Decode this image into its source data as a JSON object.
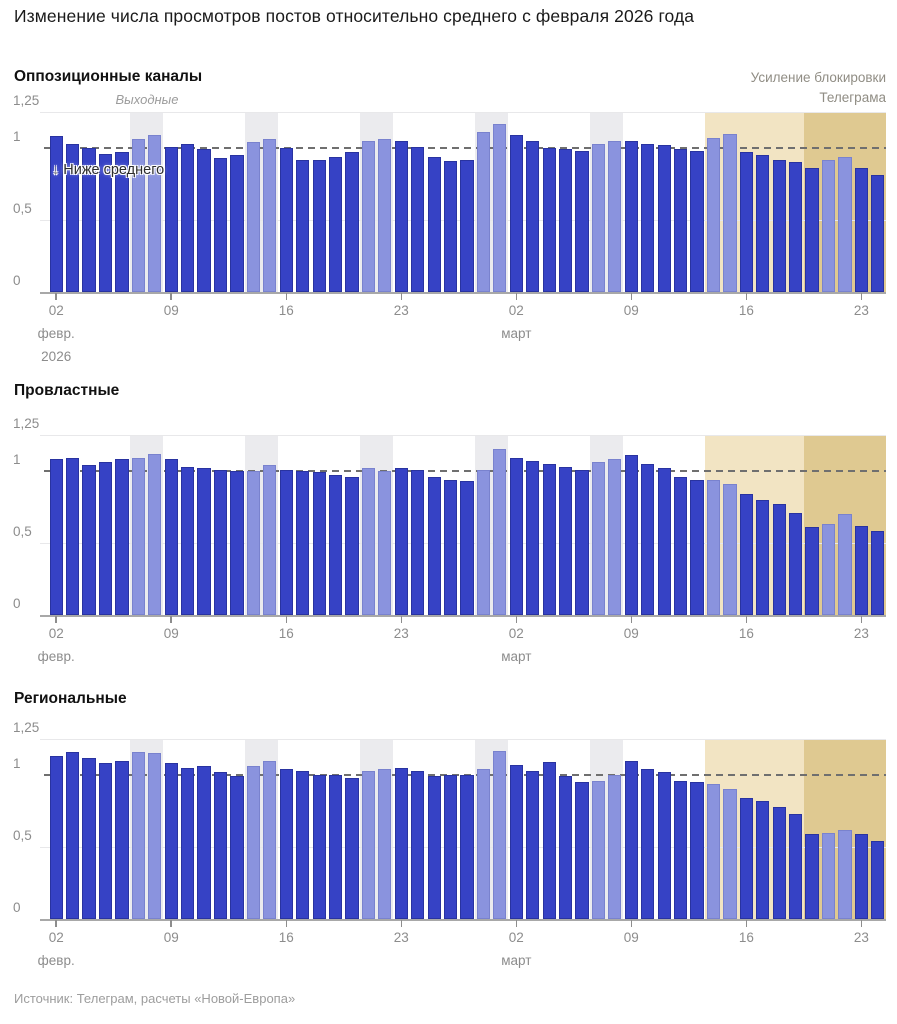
{
  "title": "Изменение числа просмотров постов относительно среднего с февраля 2026 года",
  "source": "Источник: Телеграм, расчеты «Новой-Европа»",
  "annotations": {
    "weekends": "Выходные",
    "below_average_arrow": "↓",
    "below_average": "Ниже среднего",
    "blocking_line1": "Усиление блокировки",
    "blocking_line2": "Телеграма"
  },
  "colors": {
    "bar": "#3642c5",
    "weekend_bar": "#8a93de",
    "weekend_band": "#ebebee",
    "blocking_zone_light": "#f2e4c3",
    "blocking_zone_dark": "#dfc991",
    "average_line": "#6f6f6f",
    "axis_text": "#8c8c8c"
  },
  "chart_data": {
    "type": "bar",
    "ylim": [
      0,
      1.25
    ],
    "average_line": 1.0,
    "grid": true,
    "year_label": "2026",
    "x_dates": [
      "02.02",
      "03.02",
      "04.02",
      "05.02",
      "06.02",
      "07.02",
      "08.02",
      "09.02",
      "10.02",
      "11.02",
      "12.02",
      "13.02",
      "14.02",
      "15.02",
      "16.02",
      "17.02",
      "18.02",
      "19.02",
      "20.02",
      "21.02",
      "22.02",
      "23.02",
      "24.02",
      "25.02",
      "26.02",
      "27.02",
      "28.02",
      "01.03",
      "02.03",
      "03.03",
      "04.03",
      "05.03",
      "06.03",
      "07.03",
      "08.03",
      "09.03",
      "10.03",
      "11.03",
      "12.03",
      "13.03",
      "14.03",
      "15.03",
      "16.03",
      "17.03",
      "18.03",
      "19.03",
      "20.03",
      "21.03",
      "22.03",
      "23.03",
      "24.03"
    ],
    "weekend_indices": [
      5,
      6,
      12,
      13,
      19,
      20,
      26,
      27,
      33,
      34,
      40,
      41,
      47,
      48
    ],
    "blocking_zones": [
      {
        "start_index": 40,
        "end_index": 46,
        "shade": "light"
      },
      {
        "start_index": 46,
        "end_index": 51,
        "shade": "dark"
      }
    ],
    "y_ticks": [
      {
        "value": 1.25,
        "label": "1,25"
      },
      {
        "value": 1.0,
        "label": "1"
      },
      {
        "value": 0.5,
        "label": "0,5"
      },
      {
        "value": 0,
        "label": "0"
      }
    ],
    "x_ticks": [
      {
        "index": 0,
        "label": "02",
        "month": "февр."
      },
      {
        "index": 7,
        "label": "09"
      },
      {
        "index": 14,
        "label": "16"
      },
      {
        "index": 21,
        "label": "23"
      },
      {
        "index": 28,
        "label": "02",
        "month": "март"
      },
      {
        "index": 35,
        "label": "09"
      },
      {
        "index": 42,
        "label": "16"
      },
      {
        "index": 49,
        "label": "23"
      }
    ],
    "series": [
      {
        "name": "Оппозиционные каналы",
        "values": [
          1.08,
          1.03,
          1.0,
          0.96,
          0.97,
          1.06,
          1.09,
          1.01,
          1.03,
          0.99,
          0.93,
          0.95,
          1.04,
          1.06,
          1.0,
          0.92,
          0.92,
          0.94,
          0.97,
          1.05,
          1.06,
          1.05,
          1.01,
          0.94,
          0.91,
          0.92,
          1.11,
          1.17,
          1.09,
          1.05,
          1.0,
          0.99,
          0.98,
          1.03,
          1.05,
          1.05,
          1.03,
          1.02,
          0.99,
          0.98,
          1.07,
          1.1,
          0.97,
          0.95,
          0.92,
          0.9,
          0.86,
          0.92,
          0.94,
          0.86,
          0.81
        ]
      },
      {
        "name": "Провластные",
        "values": [
          1.08,
          1.09,
          1.04,
          1.06,
          1.08,
          1.09,
          1.12,
          1.08,
          1.03,
          1.02,
          1.01,
          1.0,
          1.0,
          1.04,
          1.01,
          1.0,
          0.99,
          0.97,
          0.96,
          1.02,
          1.0,
          1.02,
          1.01,
          0.96,
          0.94,
          0.93,
          1.01,
          1.15,
          1.09,
          1.07,
          1.05,
          1.03,
          1.01,
          1.06,
          1.08,
          1.11,
          1.05,
          1.02,
          0.96,
          0.94,
          0.94,
          0.91,
          0.84,
          0.8,
          0.77,
          0.71,
          0.61,
          0.63,
          0.7,
          0.62,
          0.58
        ]
      },
      {
        "name": "Региональные",
        "values": [
          1.13,
          1.16,
          1.12,
          1.08,
          1.1,
          1.16,
          1.15,
          1.08,
          1.05,
          1.06,
          1.02,
          0.99,
          1.06,
          1.1,
          1.04,
          1.03,
          1.0,
          1.0,
          0.98,
          1.03,
          1.04,
          1.05,
          1.03,
          0.99,
          1.0,
          1.0,
          1.04,
          1.17,
          1.07,
          1.03,
          1.09,
          0.99,
          0.95,
          0.96,
          1.0,
          1.1,
          1.04,
          1.02,
          0.96,
          0.95,
          0.94,
          0.9,
          0.84,
          0.82,
          0.78,
          0.73,
          0.59,
          0.6,
          0.62,
          0.59,
          0.54
        ]
      }
    ]
  }
}
